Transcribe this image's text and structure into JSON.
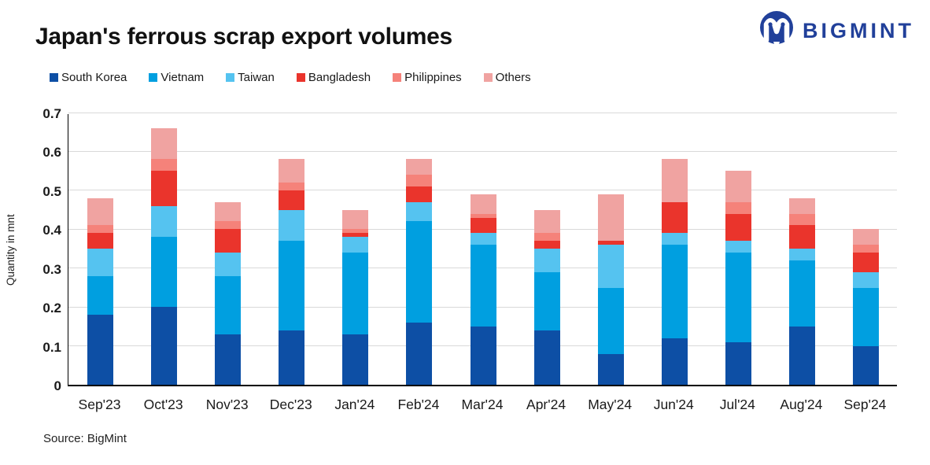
{
  "header": {
    "title": "Japan's ferrous scrap export volumes",
    "logo_text": "BIGMINT",
    "logo_color": "#21409a"
  },
  "footer": {
    "source": "Source: BigMint"
  },
  "chart_data": {
    "type": "bar",
    "stacked": true,
    "title": "Japan's ferrous scrap export volumes",
    "xlabel": "",
    "ylabel": "Quantity in mnt",
    "ylim": [
      0,
      0.7
    ],
    "ytick_labels": [
      "0",
      "0.1",
      "0.2",
      "0.3",
      "0.4",
      "0.5",
      "0.6",
      "0.7"
    ],
    "grid": "horizontal",
    "legend_position": "top",
    "categories": [
      "Sep'23",
      "Oct'23",
      "Nov'23",
      "Dec'23",
      "Jan'24",
      "Feb'24",
      "Mar'24",
      "Apr'24",
      "May'24",
      "Jun'24",
      "Jul'24",
      "Aug'24",
      "Sep'24"
    ],
    "series": [
      {
        "name": "South Korea",
        "color": "#0d4fa5",
        "values": [
          0.18,
          0.2,
          0.13,
          0.14,
          0.13,
          0.16,
          0.15,
          0.14,
          0.08,
          0.12,
          0.11,
          0.15,
          0.1
        ]
      },
      {
        "name": "Vietnam",
        "color": "#009fe0",
        "values": [
          0.1,
          0.18,
          0.15,
          0.23,
          0.21,
          0.26,
          0.21,
          0.15,
          0.17,
          0.24,
          0.23,
          0.17,
          0.15
        ]
      },
      {
        "name": "Taiwan",
        "color": "#55c3f0",
        "values": [
          0.07,
          0.08,
          0.06,
          0.08,
          0.04,
          0.05,
          0.03,
          0.06,
          0.11,
          0.03,
          0.03,
          0.03,
          0.04
        ]
      },
      {
        "name": "Bangladesh",
        "color": "#ea342c",
        "values": [
          0.04,
          0.09,
          0.06,
          0.05,
          0.01,
          0.04,
          0.04,
          0.02,
          0.01,
          0.08,
          0.07,
          0.06,
          0.05
        ]
      },
      {
        "name": "Philippines",
        "color": "#f5827a",
        "values": [
          0.02,
          0.03,
          0.02,
          0.02,
          0.01,
          0.03,
          0.01,
          0.02,
          0.0,
          0.0,
          0.03,
          0.03,
          0.02
        ]
      },
      {
        "name": "Others",
        "color": "#f0a3a1",
        "values": [
          0.07,
          0.08,
          0.05,
          0.06,
          0.05,
          0.04,
          0.05,
          0.06,
          0.12,
          0.11,
          0.08,
          0.04,
          0.04
        ]
      }
    ],
    "totals": [
      0.48,
      0.66,
      0.47,
      0.58,
      0.45,
      0.58,
      0.49,
      0.45,
      0.49,
      0.58,
      0.55,
      0.48,
      0.4
    ]
  }
}
